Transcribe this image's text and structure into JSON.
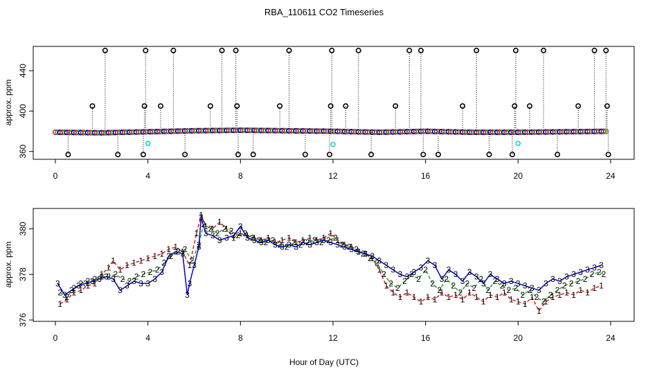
{
  "title": "RBA_110611  CO2 Timeseries",
  "xlabel": "Hour of Day (UTC)",
  "colors": {
    "series1": "#e31a1c",
    "series2": "#2ca02c",
    "series3": "#0000cc",
    "flag_high": "#000000",
    "flag_cyan": "#00d0d0",
    "axis": "#000000"
  },
  "chart_data": [
    {
      "type": "scatter",
      "title": "RBA_110611  CO2 Timeseries",
      "ylabel": "approx. ppm",
      "xlim": [
        0,
        24
      ],
      "ylim": [
        355,
        462
      ],
      "xticks": [
        0,
        4,
        8,
        12,
        16,
        20,
        24
      ],
      "yticks": [
        360,
        400,
        440
      ],
      "baseline": [
        [
          0,
          379
        ],
        [
          2,
          378.5
        ],
        [
          4,
          379.5
        ],
        [
          6,
          380.5
        ],
        [
          8,
          381
        ],
        [
          10,
          380.5
        ],
        [
          12,
          380
        ],
        [
          14,
          379
        ],
        [
          16,
          380
        ],
        [
          18,
          379
        ],
        [
          20,
          379
        ],
        [
          22,
          379.5
        ],
        [
          24,
          380
        ]
      ],
      "spikes_high": [
        2.15,
        3.9,
        5.1,
        7.2,
        7.8,
        10.1,
        11.95,
        13.1,
        15.3,
        15.8,
        18.2,
        19.9,
        21.1,
        23.3,
        23.8
      ],
      "spikes_mid": [
        1.6,
        3.85,
        4.55,
        6.7,
        7.85,
        9.7,
        11.9,
        12.55,
        14.7,
        17.6,
        19.85,
        20.5,
        22.6,
        23.85
      ],
      "spikes_low": [
        0.55,
        2.7,
        3.8,
        5.6,
        7.9,
        8.55,
        10.8,
        11.85,
        13.65,
        15.9,
        16.55,
        18.75,
        19.75,
        21.7,
        23.9
      ],
      "cyan_points": [
        [
          4.0,
          368
        ],
        [
          12.0,
          367
        ],
        [
          20.0,
          368
        ]
      ]
    },
    {
      "type": "line",
      "ylabel": "approx. ppm",
      "xlim": [
        0,
        24
      ],
      "ylim": [
        376,
        380.8
      ],
      "xticks": [
        0,
        4,
        8,
        12,
        16,
        20,
        24
      ],
      "yticks": [
        376,
        378,
        380
      ],
      "series": [
        {
          "name": "1",
          "x": [
            0.2,
            0.5,
            0.8,
            1.1,
            1.4,
            1.7,
            2.0,
            2.3,
            2.5,
            2.8,
            3.1,
            3.4,
            3.7,
            4.0,
            4.3,
            4.6,
            4.9,
            5.2,
            5.5,
            5.8,
            6.1,
            6.3,
            6.5,
            6.8,
            7.1,
            7.4,
            7.7,
            8.0,
            8.3,
            8.6,
            8.9,
            9.2,
            9.5,
            9.8,
            10.1,
            10.4,
            10.7,
            11.0,
            11.3,
            11.6,
            11.9,
            12.2,
            12.5,
            12.8,
            13.1,
            13.4,
            13.7,
            14.0,
            14.3,
            14.6,
            14.9,
            15.2,
            15.5,
            15.8,
            16.1,
            16.4,
            16.7,
            17.0,
            17.3,
            17.6,
            17.9,
            18.2,
            18.5,
            18.8,
            19.1,
            19.4,
            19.7,
            20.0,
            20.3,
            20.6,
            20.9,
            21.2,
            21.5,
            21.8,
            22.1,
            22.4,
            22.7,
            23.0,
            23.3,
            23.6
          ],
          "values": [
            376.7,
            376.9,
            377.2,
            377.3,
            377.5,
            377.6,
            378.0,
            378.3,
            378.6,
            378.2,
            378.4,
            378.5,
            378.6,
            378.7,
            378.8,
            378.9,
            379.1,
            379.2,
            379.0,
            378.4,
            379.8,
            380.6,
            380.1,
            380.0,
            380.3,
            380.0,
            379.6,
            379.8,
            379.7,
            379.6,
            379.5,
            379.6,
            379.4,
            379.5,
            379.6,
            379.4,
            379.5,
            379.6,
            379.5,
            379.6,
            379.8,
            379.5,
            379.3,
            379.2,
            379.0,
            378.9,
            378.7,
            378.2,
            377.5,
            377.2,
            377.0,
            377.2,
            377.0,
            376.8,
            377.0,
            376.9,
            377.2,
            377.0,
            377.1,
            376.9,
            377.2,
            377.0,
            376.8,
            377.1,
            377.0,
            377.2,
            376.9,
            376.8,
            376.7,
            377.0,
            376.4,
            376.8,
            377.0,
            377.1,
            377.2,
            377.1,
            377.3,
            377.2,
            377.4,
            377.5
          ]
        },
        {
          "name": "2",
          "x": [
            0.2,
            0.5,
            0.8,
            1.1,
            1.4,
            1.7,
            2.0,
            2.3,
            2.6,
            2.9,
            3.2,
            3.5,
            3.8,
            4.1,
            4.4,
            4.7,
            5.0,
            5.3,
            5.6,
            5.9,
            6.2,
            6.4,
            6.7,
            7.0,
            7.3,
            7.6,
            7.9,
            8.2,
            8.5,
            8.8,
            9.1,
            9.4,
            9.7,
            10.0,
            10.3,
            10.6,
            10.9,
            11.2,
            11.5,
            11.8,
            12.1,
            12.4,
            12.7,
            13.0,
            13.3,
            13.6,
            13.9,
            14.2,
            14.5,
            14.8,
            15.1,
            15.4,
            15.7,
            16.0,
            16.3,
            16.6,
            16.9,
            17.2,
            17.5,
            17.8,
            18.1,
            18.4,
            18.7,
            19.0,
            19.3,
            19.6,
            19.9,
            20.2,
            20.5,
            20.8,
            21.1,
            21.4,
            21.7,
            22.0,
            22.3,
            22.6,
            22.9,
            23.2,
            23.5,
            23.7
          ],
          "values": [
            377.2,
            377.0,
            377.4,
            377.6,
            377.7,
            377.8,
            377.9,
            377.9,
            378.0,
            377.8,
            377.7,
            377.9,
            378.0,
            378.1,
            378.2,
            378.5,
            378.8,
            379.0,
            379.1,
            378.6,
            379.3,
            380.2,
            380.0,
            379.8,
            380.0,
            379.9,
            379.7,
            379.8,
            379.6,
            379.5,
            379.4,
            379.5,
            379.3,
            379.2,
            379.4,
            379.3,
            379.4,
            379.5,
            379.4,
            379.5,
            379.6,
            379.3,
            379.2,
            379.1,
            378.9,
            378.7,
            378.5,
            378.0,
            377.6,
            377.4,
            377.7,
            378.0,
            377.8,
            378.2,
            377.6,
            377.3,
            377.8,
            377.5,
            377.2,
            377.6,
            377.4,
            377.8,
            377.3,
            377.7,
            377.5,
            377.3,
            377.4,
            377.1,
            377.3,
            377.0,
            376.8,
            377.1,
            377.3,
            377.5,
            377.6,
            377.7,
            377.8,
            378.0,
            378.1,
            378.0
          ]
        },
        {
          "name": "3",
          "x": [
            0.1,
            0.4,
            0.7,
            1.0,
            1.3,
            1.6,
            1.9,
            2.2,
            2.5,
            2.8,
            3.1,
            3.4,
            3.7,
            4.0,
            4.3,
            4.6,
            4.9,
            5.2,
            5.5,
            5.7,
            5.8,
            6.0,
            6.2,
            6.3,
            6.5,
            6.8,
            7.1,
            7.4,
            7.7,
            8.0,
            8.3,
            8.6,
            8.9,
            9.2,
            9.5,
            9.8,
            10.1,
            10.4,
            10.7,
            11.0,
            11.3,
            11.6,
            11.9,
            12.2,
            12.5,
            12.8,
            13.1,
            13.4,
            13.7,
            14.0,
            14.3,
            14.6,
            14.9,
            15.2,
            15.5,
            15.8,
            16.1,
            16.4,
            16.7,
            17.0,
            17.3,
            17.6,
            17.9,
            18.2,
            18.5,
            18.8,
            19.1,
            19.4,
            19.7,
            20.0,
            20.3,
            20.6,
            20.9,
            21.2,
            21.5,
            21.8,
            22.1,
            22.4,
            22.7,
            23.0,
            23.3,
            23.6
          ],
          "values": [
            377.6,
            377.1,
            377.3,
            377.5,
            377.6,
            377.7,
            377.8,
            377.9,
            377.8,
            377.3,
            377.5,
            377.7,
            377.6,
            377.6,
            377.8,
            378.1,
            378.8,
            379.0,
            378.9,
            377.1,
            377.6,
            378.4,
            379.2,
            380.5,
            379.8,
            379.7,
            379.5,
            379.6,
            379.7,
            380.1,
            379.6,
            379.5,
            379.4,
            379.5,
            379.3,
            379.2,
            379.3,
            379.2,
            379.4,
            379.3,
            379.4,
            379.5,
            379.4,
            379.3,
            379.2,
            379.1,
            379.0,
            378.9,
            378.8,
            378.6,
            378.4,
            378.2,
            378.0,
            377.9,
            378.1,
            378.3,
            378.6,
            378.4,
            377.8,
            378.2,
            378.0,
            377.7,
            378.1,
            377.9,
            377.6,
            378.0,
            377.8,
            377.6,
            377.7,
            377.6,
            377.5,
            377.4,
            377.3,
            377.6,
            377.8,
            377.7,
            377.9,
            378.0,
            378.1,
            378.2,
            378.3,
            378.4
          ]
        }
      ]
    }
  ]
}
